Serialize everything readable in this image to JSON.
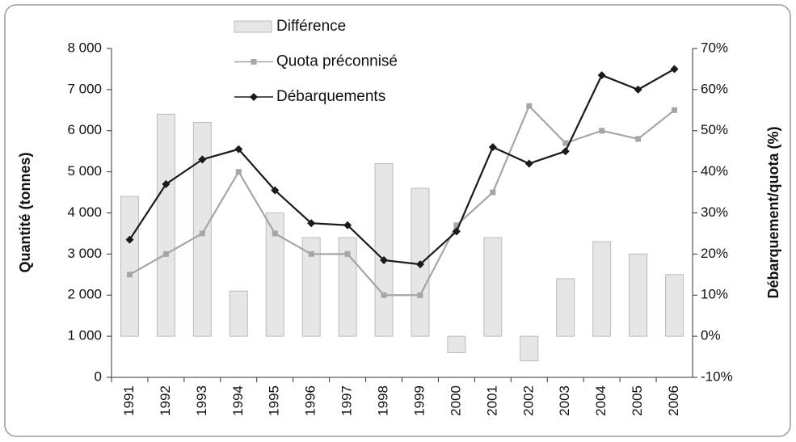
{
  "chart_data": {
    "type": "combo",
    "y_label": "Quantité (tonnes)",
    "y2_label": "Débarquement/quota (%)",
    "categories": [
      "1991",
      "1992",
      "1993",
      "1994",
      "1995",
      "1996",
      "1997",
      "1998",
      "1999",
      "2000",
      "2001",
      "2002",
      "2003",
      "2004",
      "2005",
      "2006"
    ],
    "series": [
      {
        "name": "Différence",
        "type": "bar",
        "axis": "y2",
        "color": "#e6e6e6",
        "values": [
          34,
          54,
          52,
          11,
          30,
          24,
          24,
          42,
          36,
          -4,
          24,
          -6,
          14,
          23,
          20,
          15
        ]
      },
      {
        "name": "Quota préconnisé",
        "type": "line",
        "marker": "square",
        "color": "#a6a6a6",
        "values": [
          2500,
          3000,
          3500,
          5000,
          3500,
          3000,
          3000,
          2000,
          2000,
          3700,
          4500,
          6600,
          5700,
          6000,
          5800,
          6500
        ]
      },
      {
        "name": "Débarquements",
        "type": "line",
        "marker": "diamond",
        "color": "#1a1a1a",
        "values": [
          3350,
          4700,
          5300,
          5550,
          4550,
          3750,
          3700,
          2850,
          2750,
          3550,
          5600,
          5200,
          5500,
          7350,
          7000,
          7500
        ]
      }
    ],
    "ylim": [
      0,
      8000
    ],
    "yticks": [
      0,
      {
        "value": 1000,
        "label": "1 000"
      },
      {
        "value": 2000,
        "label": "2 000"
      },
      {
        "value": 3000,
        "label": "3 000"
      },
      {
        "value": 4000,
        "label": "4 000"
      },
      {
        "value": 5000,
        "label": "5 000"
      },
      {
        "value": 6000,
        "label": "6 000"
      },
      {
        "value": 7000,
        "label": "7 000"
      },
      {
        "value": 8000,
        "label": "8 000"
      }
    ],
    "y2lim": [
      -10,
      70
    ],
    "y2ticks": [
      {
        "value": -10,
        "label": "-10%"
      },
      {
        "value": 0,
        "label": "0%"
      },
      {
        "value": 10,
        "label": "10%"
      },
      {
        "value": 20,
        "label": "20%"
      },
      {
        "value": 30,
        "label": "30%"
      },
      {
        "value": 40,
        "label": "40%"
      },
      {
        "value": 50,
        "label": "50%"
      },
      {
        "value": 60,
        "label": "60%"
      },
      {
        "value": 70,
        "label": "70%"
      }
    ]
  }
}
